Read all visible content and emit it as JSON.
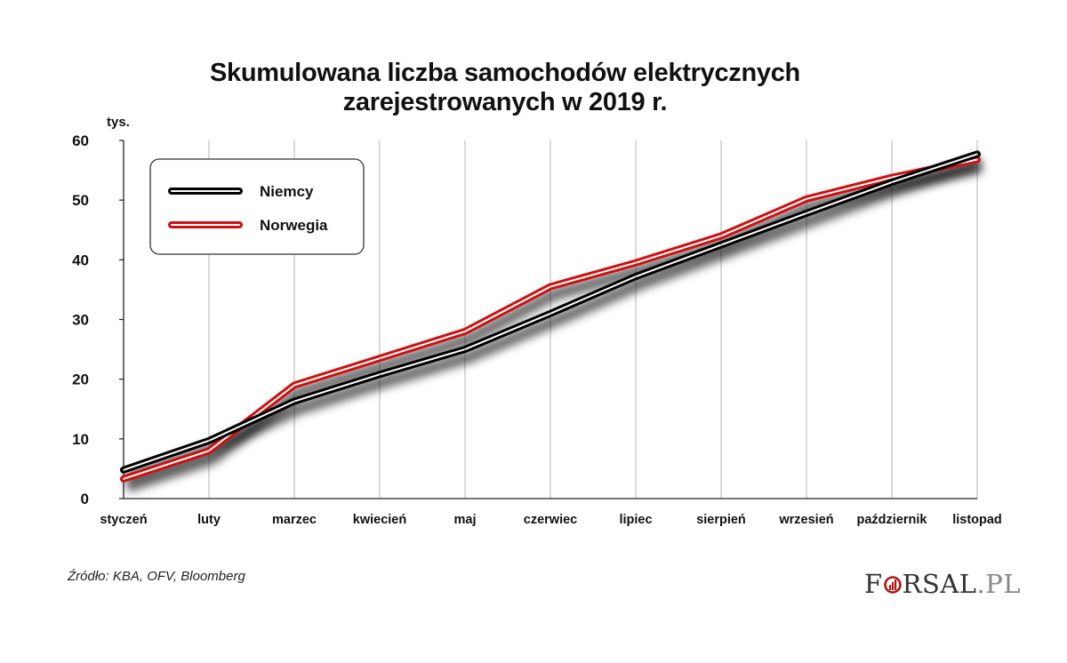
{
  "chart_data": {
    "type": "line",
    "title_lines": [
      "Skumulowana liczba samochodów elektrycznych",
      "zarejestrowanych w 2019 r."
    ],
    "ylabel": "tys.",
    "ylim": [
      0,
      60
    ],
    "yticks": [
      0,
      10,
      20,
      30,
      40,
      50,
      60
    ],
    "grid": "vertical",
    "legend_position": "top-left",
    "categories": [
      "styczeń",
      "luty",
      "marzec",
      "kwiecień",
      "maj",
      "czerwiec",
      "lipiec",
      "sierpień",
      "wrzesień",
      "październik",
      "listopad"
    ],
    "series": [
      {
        "name": "Niemcy",
        "color": "#000000",
        "values": [
          4.8,
          9.7,
          16.3,
          20.8,
          25.0,
          31.0,
          37.2,
          42.5,
          47.8,
          53.0,
          57.7
        ]
      },
      {
        "name": "Norwegia",
        "color": "#cc1111",
        "values": [
          3.3,
          8.0,
          19.0,
          23.5,
          28.0,
          35.5,
          39.5,
          44.0,
          50.2,
          53.8,
          56.8
        ]
      }
    ]
  },
  "footer": {
    "source": "Źródło: KBA, OFV, Bloomberg",
    "logo_left": "F",
    "logo_right": "RSAL",
    "logo_suffix": ".PL"
  }
}
